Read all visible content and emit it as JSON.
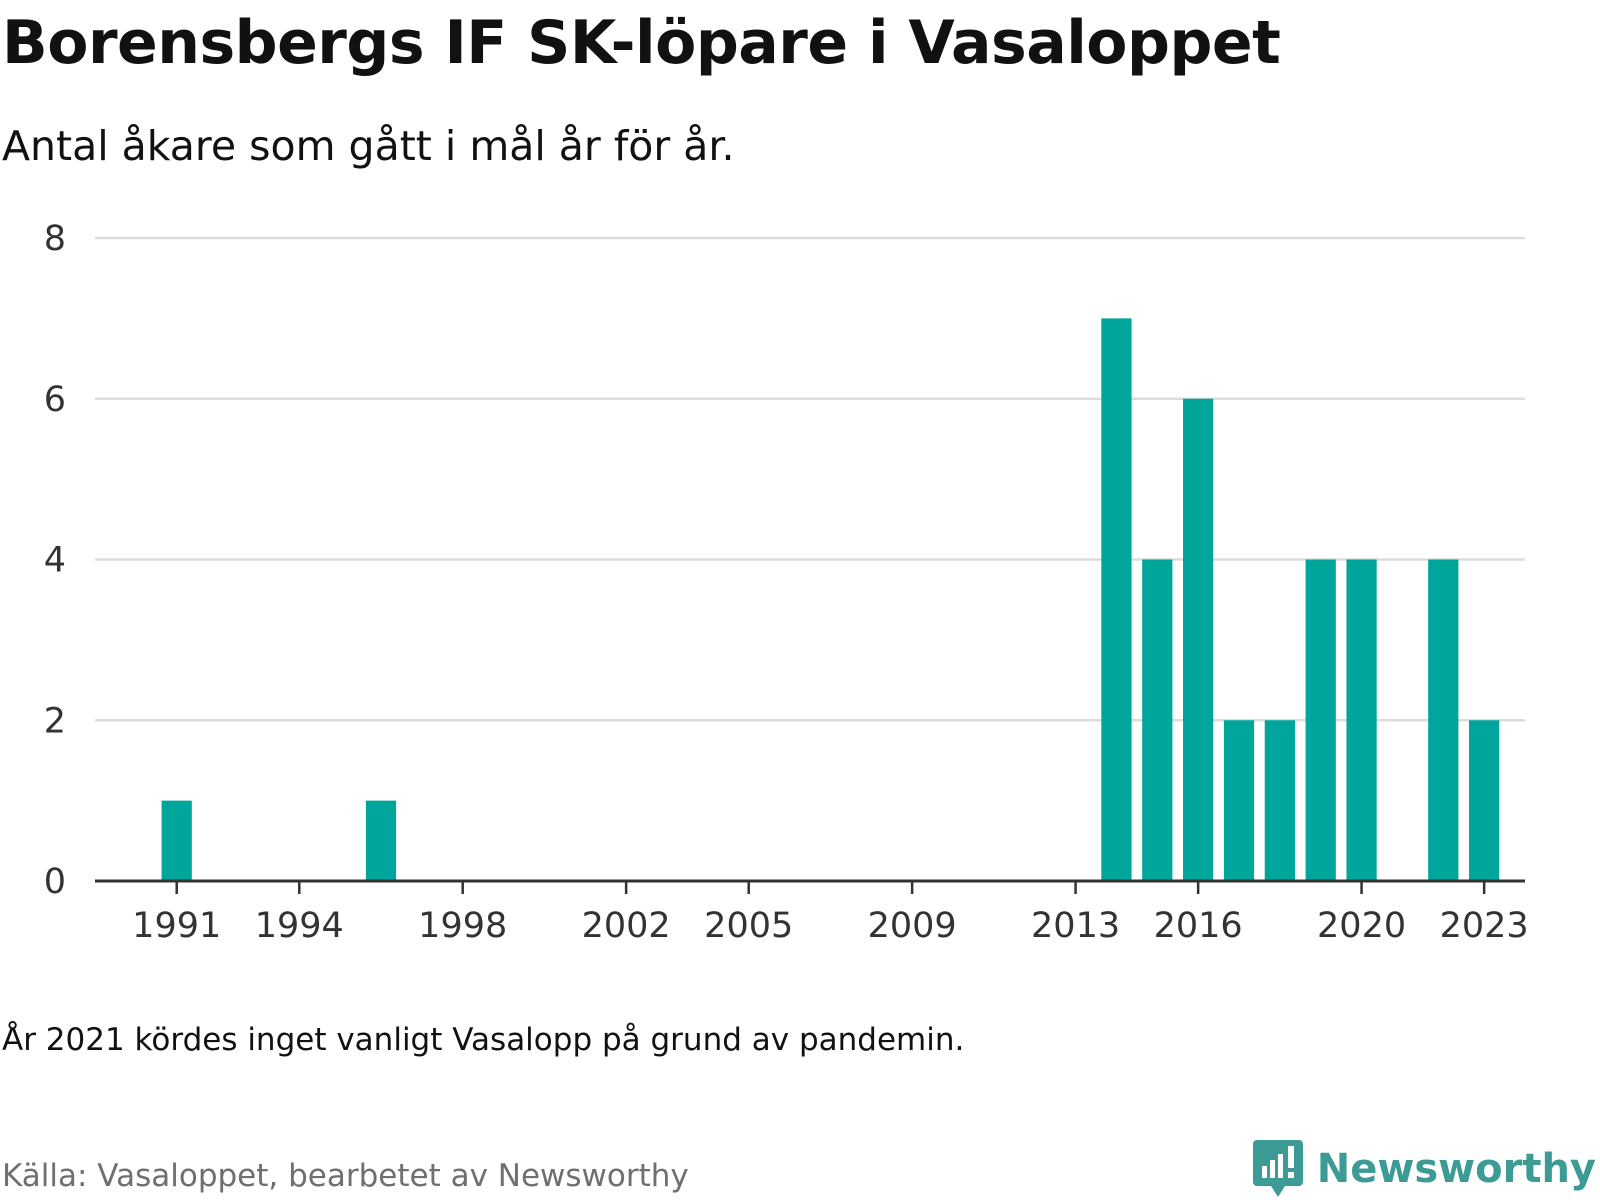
{
  "header": {
    "title": "Borensbergs IF SK-löpare i Vasaloppet",
    "subtitle": "Antal åkare som gått i mål år för år."
  },
  "footer": {
    "note": "År 2021 kördes inget vanligt Vasalopp på grund av pandemin.",
    "source": "Källa: Vasaloppet, bearbetet av Newsworthy",
    "brand": "Newsworthy",
    "brand_icon": "bar-chart-logo-icon"
  },
  "colors": {
    "bar": "#00a59b",
    "grid": "#dcdcdc",
    "axis": "#333333",
    "brand": "#3c9b94"
  },
  "chart_data": {
    "type": "bar",
    "title": "Borensbergs IF SK-löpare i Vasaloppet",
    "subtitle": "Antal åkare som gått i mål år för år.",
    "xlabel": "",
    "ylabel": "",
    "x_tick_labels": [
      "1991",
      "1994",
      "1998",
      "2002",
      "2005",
      "2009",
      "2013",
      "2016",
      "2020",
      "2023"
    ],
    "y_ticks": [
      0,
      2,
      4,
      6,
      8
    ],
    "ylim": [
      0,
      8
    ],
    "x_range": [
      1989,
      2024
    ],
    "grid": true,
    "legend": "none",
    "categories": [
      "1991",
      "1996",
      "2014",
      "2015",
      "2016",
      "2017",
      "2018",
      "2019",
      "2020",
      "2022",
      "2023"
    ],
    "values": [
      1,
      1,
      7,
      4,
      6,
      2,
      2,
      4,
      4,
      4,
      2
    ]
  }
}
